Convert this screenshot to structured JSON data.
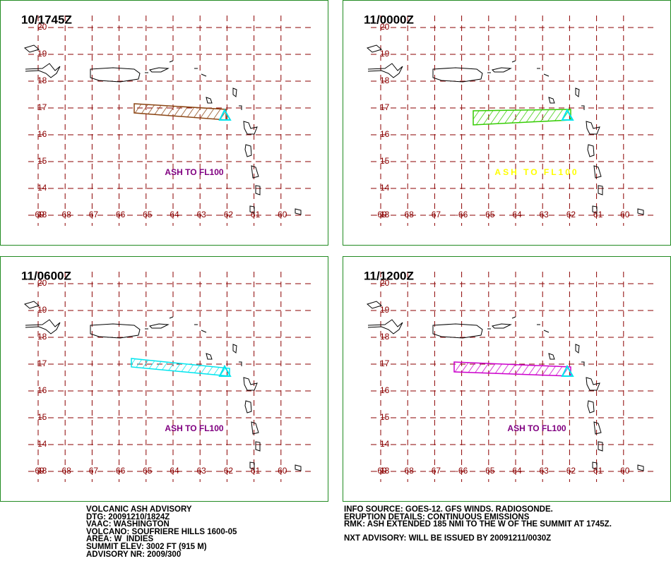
{
  "panels": [
    {
      "title": "10/1745Z",
      "ash_label": "ASH TO FL100",
      "ash_color": "#8b4513",
      "label_color": "#800080"
    },
    {
      "title": "11/0000Z",
      "ash_label": "ASH TO FL100",
      "ash_color": "#33cc00",
      "label_color": "#ffff00"
    },
    {
      "title": "11/0600Z",
      "ash_label": "ASH TO FL100",
      "ash_color": "#00e5ee",
      "label_color": "#800080"
    },
    {
      "title": "11/1200Z",
      "ash_label": "ASH TO FL100",
      "ash_color": "#cc00cc",
      "label_color": "#800080"
    }
  ],
  "grid": {
    "lat_labels": [
      "13",
      "14",
      "15",
      "16",
      "17",
      "18",
      "19",
      "20"
    ],
    "lon_labels": [
      "-69",
      "-68",
      "-67",
      "-66",
      "-65",
      "-64",
      "-63",
      "-62",
      "-61",
      "-60"
    ],
    "color": "#8b0000"
  },
  "advisory": {
    "left": [
      "VOLCANIC ASH ADVISORY",
      "DTG: 20091210/1824Z",
      "VAAC: WASHINGTON",
      "VOLCANO: SOUFRIERE HILLS 1600-05",
      "AREA: W_INDIES",
      "SUMMIT ELEV: 3002 FT (915 M)",
      "ADVISORY NR: 2009/300"
    ],
    "right": [
      "INFO SOURCE: GOES-12. GFS WINDS. RADIOSONDE.",
      "ERUPTION DETAILS: CONTINUOUS EMISSIONS",
      "RMK: ASH EXTENDED 185 NMI TO THE W OF THE SUMMIT AT 1745Z.",
      "NXT ADVISORY: WILL BE ISSUED BY 20091211/0030Z"
    ]
  }
}
